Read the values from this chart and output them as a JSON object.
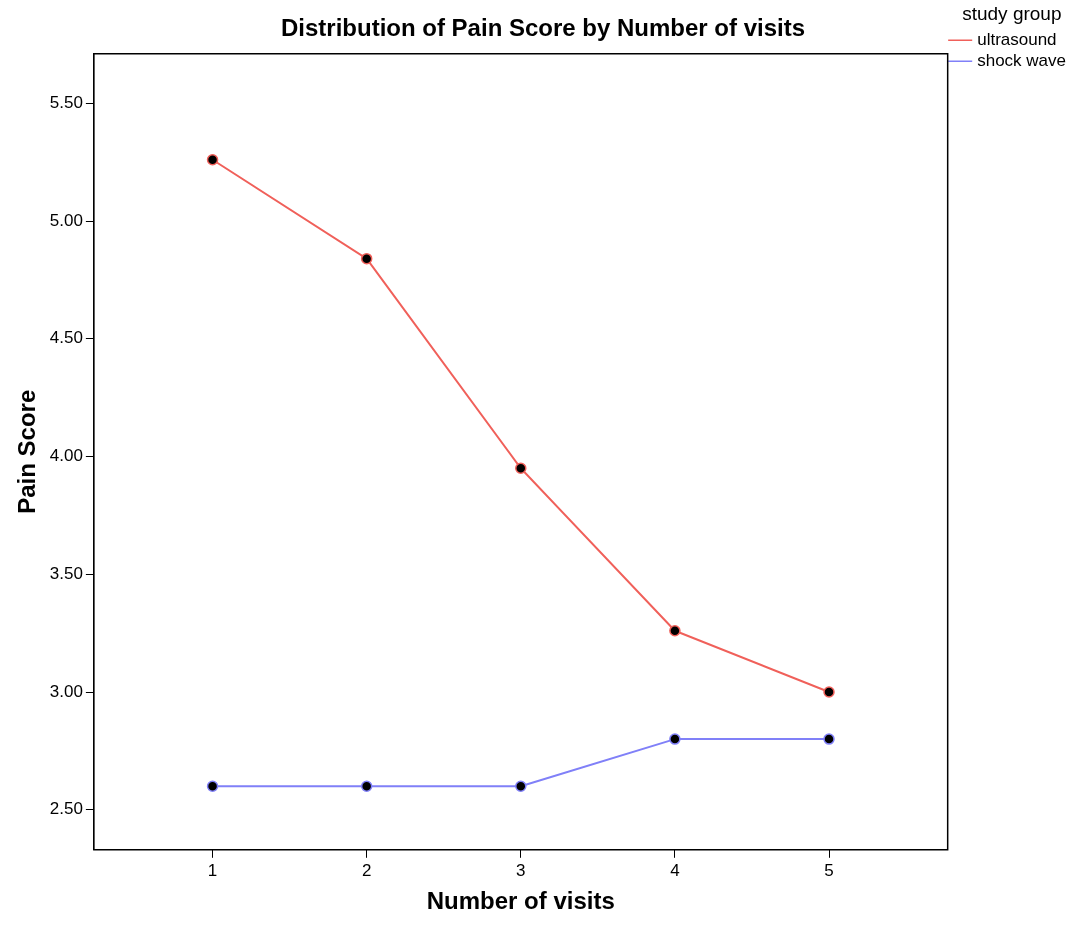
{
  "chart_data": {
    "type": "line",
    "title": "Distribution of Pain Score by Number of visits",
    "xlabel": "Number of visits",
    "ylabel": "Pain Score",
    "legend_title": "study group",
    "x": [
      1,
      2,
      3,
      4,
      5
    ],
    "series": [
      {
        "name": "ultrasound",
        "color": "#f0605a",
        "values": [
          5.26,
          4.84,
          3.95,
          3.26,
          3.0
        ]
      },
      {
        "name": "shock wave",
        "color": "#8080f8",
        "values": [
          2.6,
          2.6,
          2.6,
          2.8,
          2.8
        ]
      }
    ],
    "xlim": [
      0.23,
      5.77
    ],
    "xticks": [
      1,
      2,
      3,
      4,
      5
    ],
    "ylim": [
      2.33,
      5.71
    ],
    "yticks": [
      {
        "value": 2.5,
        "label": "2.50"
      },
      {
        "value": 3,
        "label": "3.00"
      },
      {
        "value": 3.5,
        "label": "3.50"
      },
      {
        "value": 4,
        "label": "4.00"
      },
      {
        "value": 4.5,
        "label": "4.50"
      },
      {
        "value": 5,
        "label": "5.00"
      },
      {
        "value": 5.5,
        "label": "5.50"
      }
    ],
    "grid": false,
    "legend": "top right",
    "marker": "circle",
    "line_style": "solid"
  }
}
